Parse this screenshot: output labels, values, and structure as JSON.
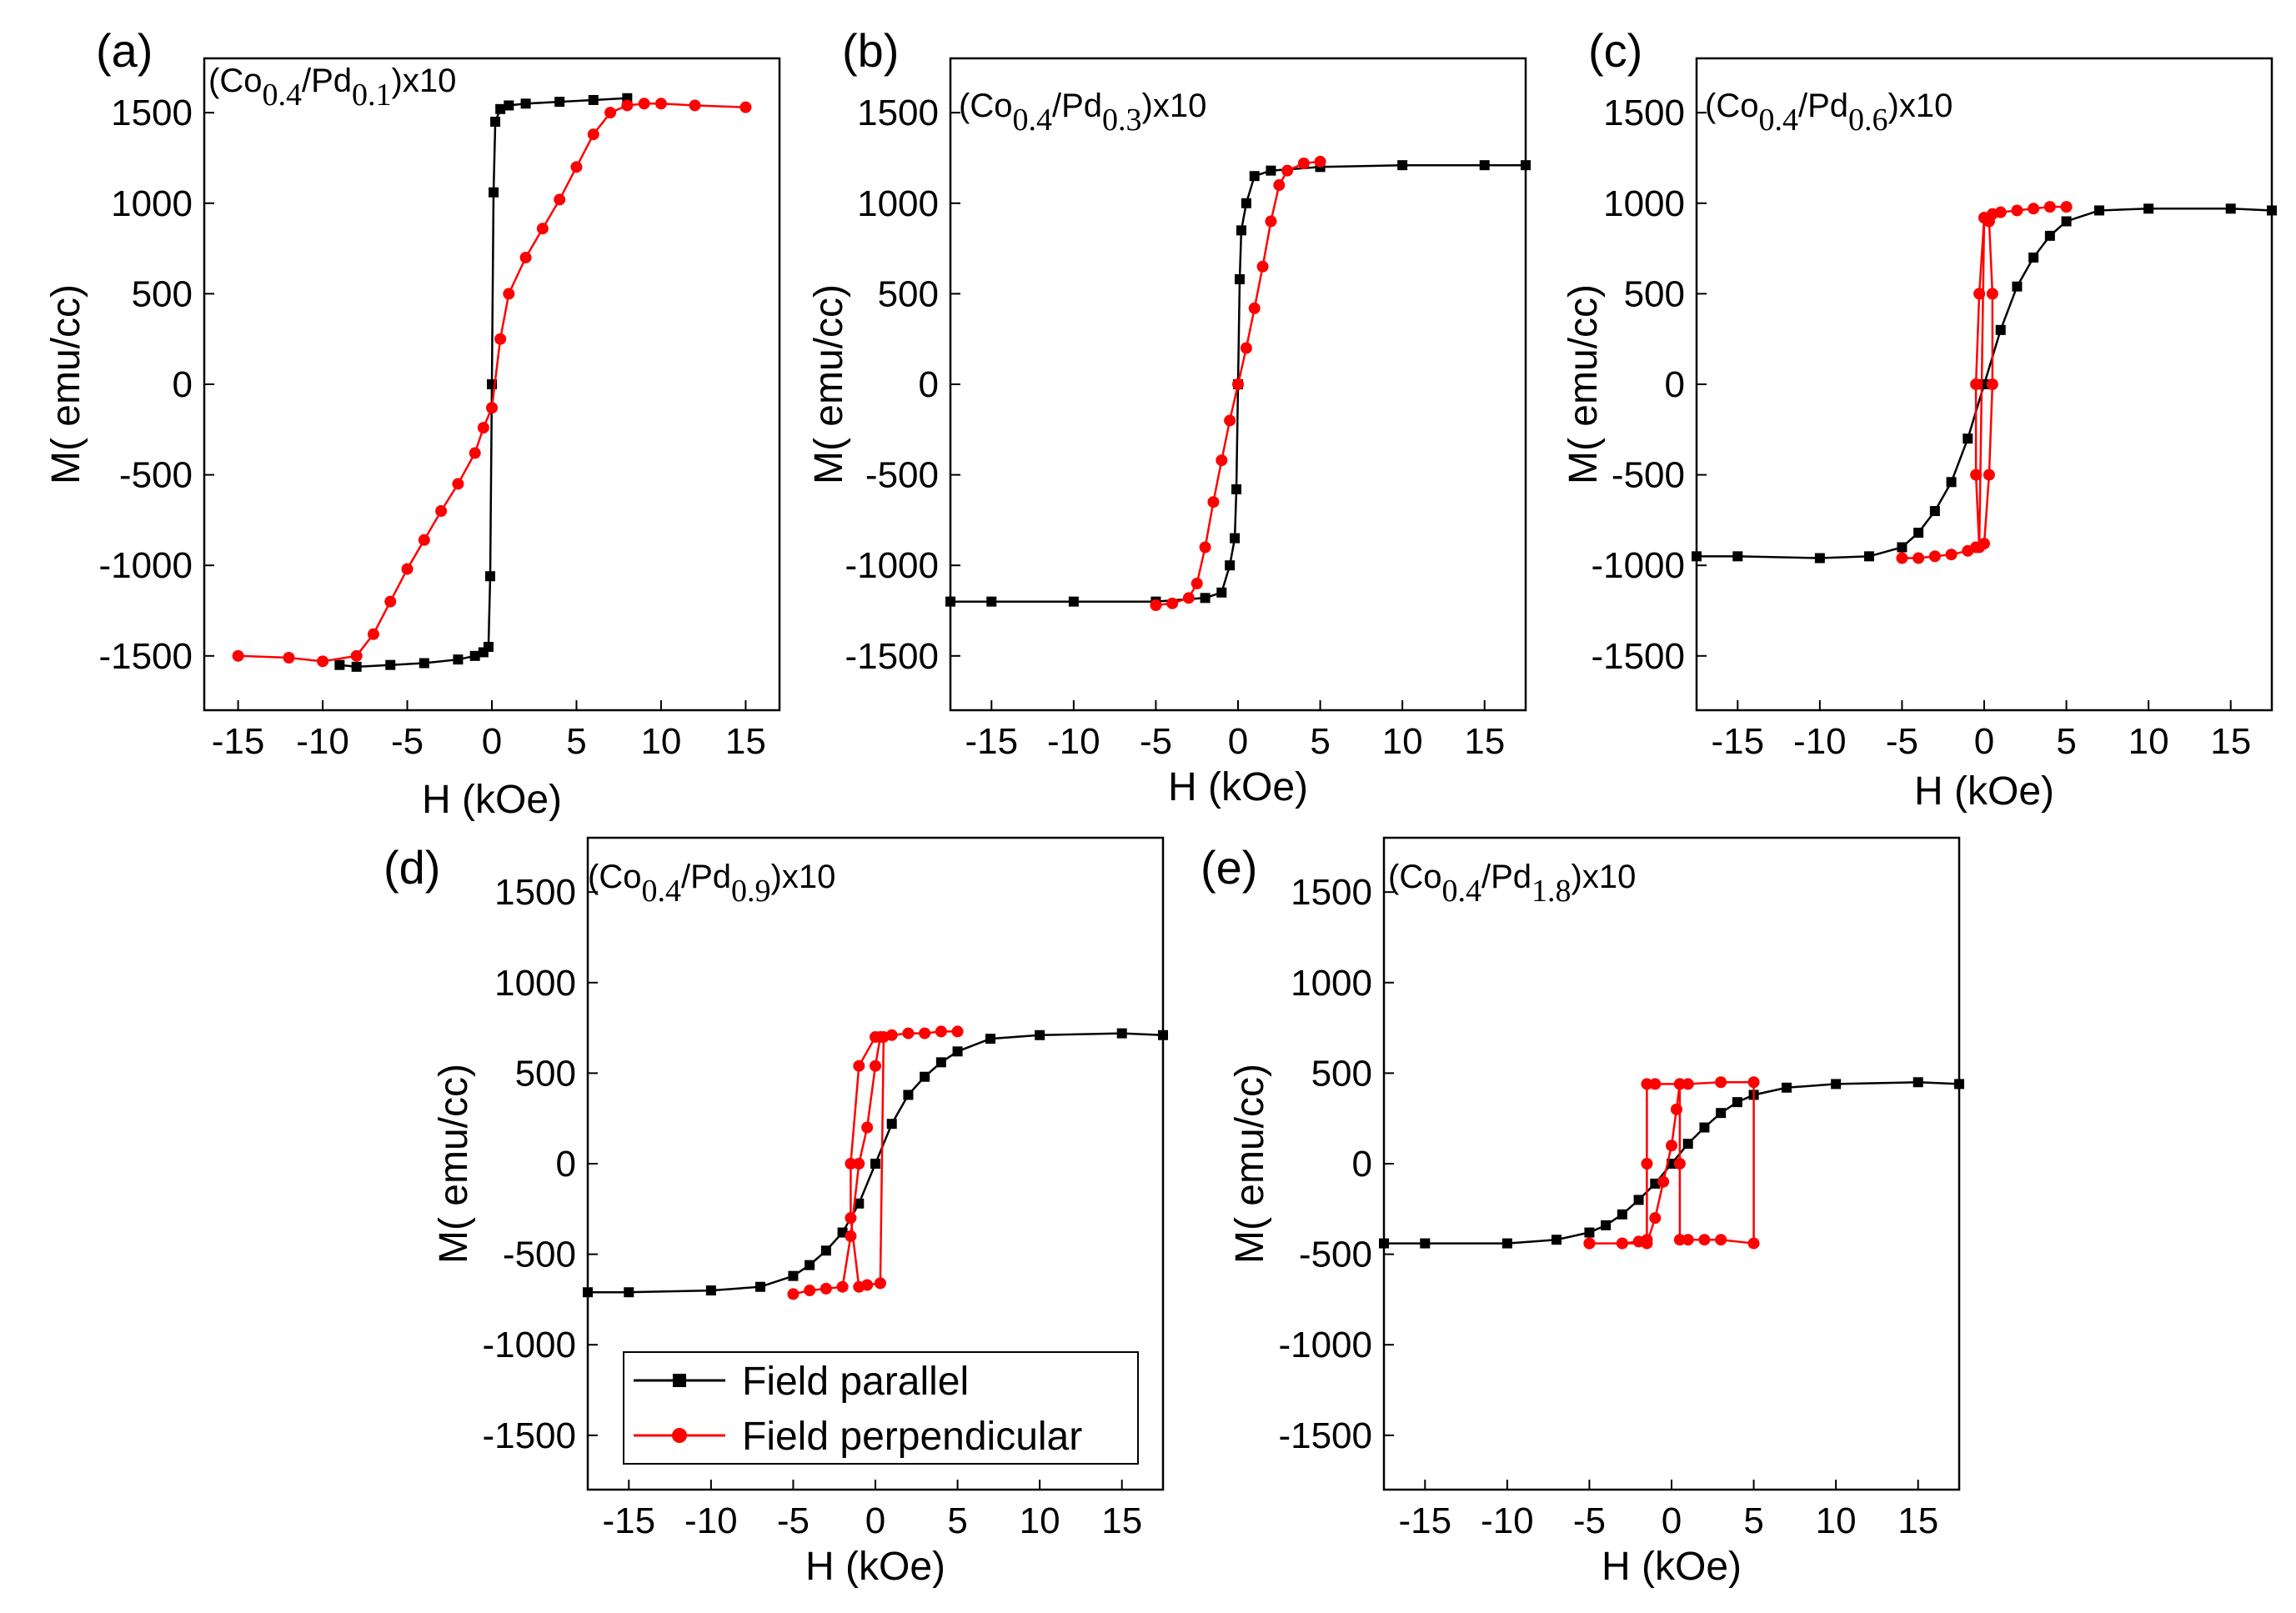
{
  "figure": {
    "x_label": "H (kOe)",
    "y_label": "M( emu/cc)"
  },
  "legend": {
    "items": [
      {
        "label": "Field parallel",
        "color": "#000000",
        "marker": "square"
      },
      {
        "label": "Field perpendicular",
        "color": "#ff0000",
        "marker": "circle"
      }
    ]
  },
  "chart_data": [
    {
      "type": "line",
      "panel": "(a)",
      "sample": {
        "prefix": "(Co",
        "sub1": "0.4",
        "mid": "/Pd",
        "sub2": "0.1",
        "suffix": ")x10"
      },
      "xlabel": "H (kOe)",
      "ylabel": "M( emu/cc)",
      "xlim": [
        -17,
        17
      ],
      "ylim": [
        -1800,
        1800
      ],
      "xticks": [
        -15,
        -10,
        -5,
        0,
        5,
        10,
        15
      ],
      "yticks": [
        -1500,
        -1000,
        -500,
        0,
        500,
        1000,
        1500
      ],
      "series": [
        {
          "name": "Field parallel",
          "color": "#000000",
          "marker": "square",
          "x": [
            -9,
            -8,
            -6,
            -4,
            -2,
            -1,
            -0.5,
            -0.2,
            -0.1,
            0,
            0.1,
            0.2,
            0.5,
            1,
            2,
            4,
            6,
            8
          ],
          "y": [
            -1550,
            -1560,
            -1550,
            -1540,
            -1520,
            -1500,
            -1480,
            -1450,
            -1060,
            0,
            1060,
            1450,
            1520,
            1540,
            1550,
            1560,
            1570,
            1580
          ]
        },
        {
          "name": "Field perpendicular",
          "color": "#ff0000",
          "marker": "circle",
          "x": [
            -15,
            -12,
            -10,
            -8,
            -7,
            -6,
            -5,
            -4,
            -3,
            -2,
            -1,
            -0.5,
            0,
            0.5,
            1,
            2,
            3,
            4,
            5,
            6,
            7,
            8,
            9,
            10,
            12,
            15
          ],
          "y": [
            -1500,
            -1510,
            -1530,
            -1500,
            -1380,
            -1200,
            -1020,
            -860,
            -700,
            -550,
            -380,
            -240,
            -130,
            250,
            500,
            700,
            860,
            1020,
            1200,
            1380,
            1500,
            1540,
            1550,
            1550,
            1540,
            1530
          ]
        }
      ]
    },
    {
      "type": "line",
      "panel": "(b)",
      "sample": {
        "prefix": "(Co",
        "sub1": "0.4",
        "mid": "/Pd",
        "sub2": "0.3",
        "suffix": ")x10"
      },
      "xlabel": "H (kOe)",
      "ylabel": "M( emu/cc)",
      "xlim": [
        -17.5,
        17.5
      ],
      "ylim": [
        -1800,
        1800
      ],
      "xticks": [
        -15,
        -10,
        -5,
        0,
        5,
        10,
        15
      ],
      "yticks": [
        -1500,
        -1000,
        -500,
        0,
        500,
        1000,
        1500
      ],
      "series": [
        {
          "name": "Field parallel",
          "color": "#000000",
          "marker": "square",
          "x": [
            -17.5,
            -15,
            -10,
            -5,
            -2,
            -1,
            -0.5,
            -0.2,
            -0.1,
            0,
            0.1,
            0.2,
            0.5,
            1,
            2,
            5,
            10,
            15,
            17.5
          ],
          "y": [
            -1200,
            -1200,
            -1200,
            -1200,
            -1180,
            -1150,
            -1000,
            -850,
            -580,
            0,
            580,
            850,
            1000,
            1150,
            1180,
            1200,
            1210,
            1210,
            1210
          ]
        },
        {
          "name": "Field perpendicular",
          "color": "#ff0000",
          "marker": "circle",
          "x": [
            -5,
            -4,
            -3,
            -2.5,
            -2,
            -1.5,
            -1,
            -0.5,
            0,
            0.5,
            1,
            1.5,
            2,
            2.5,
            3,
            4,
            5
          ],
          "y": [
            -1220,
            -1210,
            -1180,
            -1100,
            -900,
            -650,
            -420,
            -200,
            0,
            200,
            420,
            650,
            900,
            1100,
            1180,
            1220,
            1230
          ]
        }
      ]
    },
    {
      "type": "line",
      "panel": "(c)",
      "sample": {
        "prefix": "(Co",
        "sub1": "0.4",
        "mid": "/Pd",
        "sub2": "0.6",
        "suffix": ")x10"
      },
      "xlabel": "H (kOe)",
      "ylabel": "M( emu/cc)",
      "xlim": [
        -17.5,
        17.5
      ],
      "ylim": [
        -1800,
        1800
      ],
      "xticks": [
        -15,
        -10,
        -5,
        0,
        5,
        10,
        15
      ],
      "yticks": [
        -1500,
        -1000,
        -500,
        0,
        500,
        1000,
        1500
      ],
      "series": [
        {
          "name": "Field parallel",
          "color": "#000000",
          "marker": "square",
          "x": [
            -17.5,
            -15,
            -10,
            -7,
            -5,
            -4,
            -3,
            -2,
            -1,
            0,
            1,
            2,
            3,
            4,
            5,
            7,
            10,
            15,
            17.5
          ],
          "y": [
            -950,
            -950,
            -960,
            -950,
            -900,
            -820,
            -700,
            -540,
            -300,
            0,
            300,
            540,
            700,
            820,
            900,
            960,
            970,
            970,
            960
          ]
        },
        {
          "name": "Field perpendicular",
          "color": "#ff0000",
          "marker": "circle",
          "x": [
            -5,
            -4,
            -3,
            -2,
            -1,
            -0.5,
            0,
            0.3,
            0.5,
            0.5,
            0.3,
            0,
            -0.3,
            -0.5,
            -0.5,
            -0.3,
            0,
            0.5,
            1,
            2,
            3,
            4,
            5
          ],
          "y": [
            -960,
            -960,
            -950,
            -940,
            -920,
            -900,
            -880,
            -500,
            0,
            500,
            900,
            920,
            500,
            0,
            -500,
            -900,
            920,
            940,
            950,
            960,
            970,
            980,
            980
          ]
        }
      ]
    },
    {
      "type": "line",
      "panel": "(d)",
      "sample": {
        "prefix": "(Co",
        "sub1": "0.4",
        "mid": "/Pd",
        "sub2": "0.9",
        "suffix": ")x10"
      },
      "xlabel": "H (kOe)",
      "ylabel": "M( emu/cc)",
      "xlim": [
        -17.5,
        17.5
      ],
      "ylim": [
        -1800,
        1800
      ],
      "xticks": [
        -15,
        -10,
        -5,
        0,
        5,
        10,
        15
      ],
      "yticks": [
        -1500,
        -1000,
        -500,
        0,
        500,
        1000,
        1500
      ],
      "series": [
        {
          "name": "Field parallel",
          "color": "#000000",
          "marker": "square",
          "x": [
            -17.5,
            -15,
            -10,
            -7,
            -5,
            -4,
            -3,
            -2,
            -1,
            0,
            1,
            2,
            3,
            4,
            5,
            7,
            10,
            15,
            17.5
          ],
          "y": [
            -710,
            -710,
            -700,
            -680,
            -620,
            -560,
            -480,
            -380,
            -220,
            0,
            220,
            380,
            480,
            560,
            620,
            690,
            710,
            720,
            710
          ]
        },
        {
          "name": "Field perpendicular",
          "color": "#ff0000",
          "marker": "circle",
          "x": [
            -5,
            -4,
            -3,
            -2,
            -1.5,
            -1,
            -0.5,
            0,
            0.3,
            0.5,
            0.3,
            -0.5,
            -1,
            -1.5,
            -1.5,
            -1,
            0,
            1,
            2,
            3,
            4,
            5
          ],
          "y": [
            -720,
            -700,
            -690,
            -680,
            -400,
            0,
            200,
            540,
            700,
            700,
            -660,
            -670,
            -680,
            -300,
            0,
            540,
            700,
            710,
            720,
            720,
            730,
            730
          ]
        }
      ]
    },
    {
      "type": "line",
      "panel": "(e)",
      "sample": {
        "prefix": "(Co",
        "sub1": "0.4",
        "mid": "/Pd",
        "sub2": "1.8",
        "suffix": ")x10"
      },
      "xlabel": "H (kOe)",
      "ylabel": "M( emu/cc)",
      "xlim": [
        -17.5,
        17.5
      ],
      "ylim": [
        -1800,
        1800
      ],
      "xticks": [
        -15,
        -10,
        -5,
        0,
        5,
        10,
        15
      ],
      "yticks": [
        -1500,
        -1000,
        -500,
        0,
        500,
        1000,
        1500
      ],
      "series": [
        {
          "name": "Field parallel",
          "color": "#000000",
          "marker": "square",
          "x": [
            -17.5,
            -15,
            -10,
            -7,
            -5,
            -4,
            -3,
            -2,
            -1,
            0,
            1,
            2,
            3,
            4,
            5,
            7,
            10,
            15,
            17.5
          ],
          "y": [
            -440,
            -440,
            -440,
            -420,
            -380,
            -340,
            -280,
            -200,
            -110,
            0,
            110,
            200,
            280,
            340,
            380,
            420,
            440,
            450,
            440
          ]
        },
        {
          "name": "Field perpendicular",
          "color": "#ff0000",
          "marker": "circle",
          "x": [
            -5,
            -3,
            -1.5,
            -1,
            -0.5,
            0,
            0.3,
            0.5,
            0.5,
            0.5,
            1,
            2,
            3,
            5,
            5,
            3,
            1,
            0.5,
            -1,
            -1.5,
            -1.5,
            -1.5,
            -2,
            -3,
            -5
          ],
          "y": [
            -440,
            -440,
            -440,
            -300,
            -100,
            100,
            300,
            440,
            0,
            -420,
            -420,
            -420,
            -420,
            -440,
            450,
            450,
            440,
            440,
            440,
            440,
            0,
            -420,
            -430,
            -440,
            -440
          ]
        }
      ]
    }
  ]
}
